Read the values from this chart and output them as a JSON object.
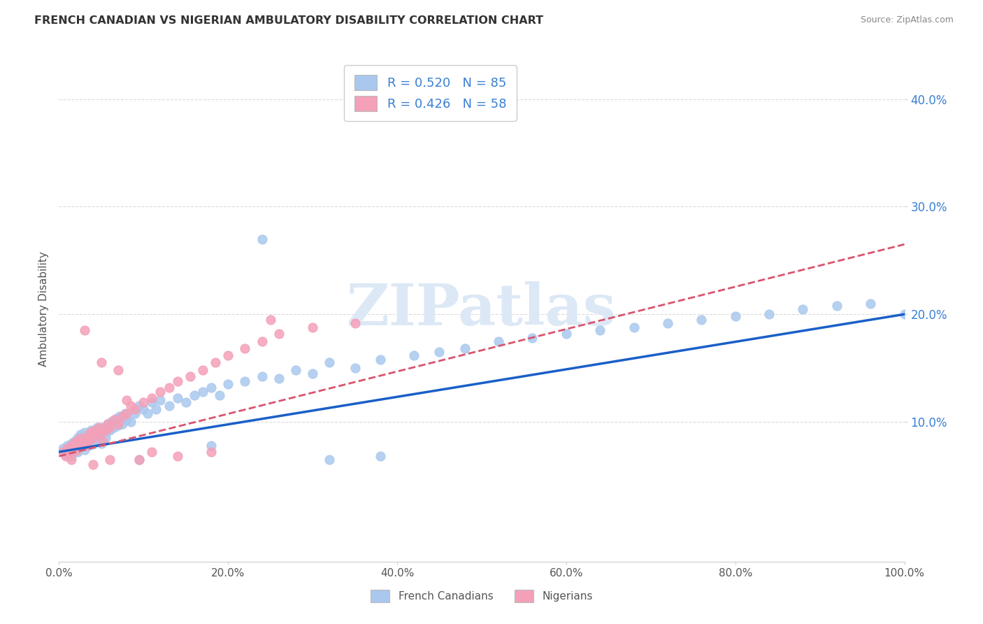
{
  "title": "FRENCH CANADIAN VS NIGERIAN AMBULATORY DISABILITY CORRELATION CHART",
  "source": "Source: ZipAtlas.com",
  "ylabel": "Ambulatory Disability",
  "xlim": [
    0,
    1.0
  ],
  "ylim": [
    -0.03,
    0.44
  ],
  "xtick_labels": [
    "0.0%",
    "20.0%",
    "40.0%",
    "60.0%",
    "80.0%",
    "100.0%"
  ],
  "xtick_vals": [
    0.0,
    0.2,
    0.4,
    0.6,
    0.8,
    1.0
  ],
  "ytick_labels": [
    "10.0%",
    "20.0%",
    "30.0%",
    "40.0%"
  ],
  "ytick_vals": [
    0.1,
    0.2,
    0.3,
    0.4
  ],
  "blue_color": "#aac8ee",
  "pink_color": "#f4a0b8",
  "blue_line_color": "#1a5fc8",
  "pink_line_color": "#d9546e",
  "watermark_color": "#dce8f5",
  "watermark": "ZIPatlas",
  "legend_line1": "R = 0.520   N = 85",
  "legend_line2": "R = 0.426   N = 58",
  "legend_color": "#3a7fd5",
  "title_color": "#333333",
  "source_color": "#888888",
  "ylabel_color": "#555555",
  "tick_color": "#3a7fd5",
  "xtick_color": "#555555",
  "grid_color": "#d8d8d8",
  "blue_x": [
    0.005,
    0.008,
    0.01,
    0.012,
    0.015,
    0.015,
    0.018,
    0.02,
    0.022,
    0.022,
    0.025,
    0.025,
    0.028,
    0.03,
    0.03,
    0.032,
    0.035,
    0.035,
    0.038,
    0.04,
    0.04,
    0.042,
    0.045,
    0.045,
    0.048,
    0.05,
    0.05,
    0.052,
    0.055,
    0.055,
    0.058,
    0.06,
    0.062,
    0.065,
    0.068,
    0.07,
    0.072,
    0.075,
    0.078,
    0.08,
    0.085,
    0.09,
    0.095,
    0.1,
    0.105,
    0.11,
    0.115,
    0.12,
    0.13,
    0.14,
    0.15,
    0.16,
    0.17,
    0.18,
    0.19,
    0.2,
    0.22,
    0.24,
    0.26,
    0.28,
    0.3,
    0.32,
    0.35,
    0.38,
    0.42,
    0.45,
    0.48,
    0.52,
    0.56,
    0.6,
    0.64,
    0.68,
    0.72,
    0.76,
    0.8,
    0.84,
    0.88,
    0.92,
    0.96,
    1.0,
    0.24,
    0.18,
    0.32,
    0.38,
    0.095
  ],
  "blue_y": [
    0.075,
    0.07,
    0.078,
    0.072,
    0.08,
    0.068,
    0.082,
    0.076,
    0.085,
    0.072,
    0.078,
    0.088,
    0.08,
    0.074,
    0.09,
    0.083,
    0.087,
    0.078,
    0.092,
    0.085,
    0.079,
    0.09,
    0.083,
    0.095,
    0.088,
    0.092,
    0.08,
    0.095,
    0.09,
    0.085,
    0.098,
    0.092,
    0.1,
    0.095,
    0.103,
    0.097,
    0.105,
    0.098,
    0.108,
    0.102,
    0.1,
    0.108,
    0.115,
    0.112,
    0.108,
    0.118,
    0.112,
    0.12,
    0.115,
    0.122,
    0.118,
    0.125,
    0.128,
    0.132,
    0.125,
    0.135,
    0.138,
    0.142,
    0.14,
    0.148,
    0.145,
    0.155,
    0.15,
    0.158,
    0.162,
    0.165,
    0.168,
    0.175,
    0.178,
    0.182,
    0.185,
    0.188,
    0.192,
    0.195,
    0.198,
    0.2,
    0.205,
    0.208,
    0.21,
    0.2,
    0.27,
    0.078,
    0.065,
    0.068,
    0.065
  ],
  "pink_x": [
    0.005,
    0.008,
    0.01,
    0.012,
    0.015,
    0.015,
    0.018,
    0.02,
    0.02,
    0.022,
    0.025,
    0.025,
    0.028,
    0.03,
    0.032,
    0.035,
    0.035,
    0.038,
    0.04,
    0.042,
    0.045,
    0.048,
    0.05,
    0.052,
    0.055,
    0.058,
    0.06,
    0.065,
    0.07,
    0.075,
    0.08,
    0.085,
    0.09,
    0.1,
    0.11,
    0.12,
    0.13,
    0.14,
    0.155,
    0.17,
    0.185,
    0.2,
    0.22,
    0.24,
    0.26,
    0.3,
    0.35,
    0.03,
    0.04,
    0.05,
    0.06,
    0.07,
    0.08,
    0.095,
    0.11,
    0.14,
    0.18,
    0.25
  ],
  "pink_y": [
    0.072,
    0.068,
    0.075,
    0.07,
    0.078,
    0.065,
    0.08,
    0.073,
    0.082,
    0.076,
    0.08,
    0.085,
    0.078,
    0.083,
    0.078,
    0.088,
    0.082,
    0.09,
    0.085,
    0.092,
    0.088,
    0.095,
    0.09,
    0.082,
    0.092,
    0.098,
    0.095,
    0.102,
    0.098,
    0.105,
    0.108,
    0.115,
    0.112,
    0.118,
    0.122,
    0.128,
    0.132,
    0.138,
    0.142,
    0.148,
    0.155,
    0.162,
    0.168,
    0.175,
    0.182,
    0.188,
    0.192,
    0.185,
    0.06,
    0.155,
    0.065,
    0.148,
    0.12,
    0.065,
    0.072,
    0.068,
    0.072,
    0.195
  ],
  "blue_line_x": [
    0.0,
    1.0
  ],
  "blue_line_y": [
    0.072,
    0.2
  ],
  "pink_line_x": [
    0.0,
    1.0
  ],
  "pink_line_y": [
    0.068,
    0.265
  ]
}
